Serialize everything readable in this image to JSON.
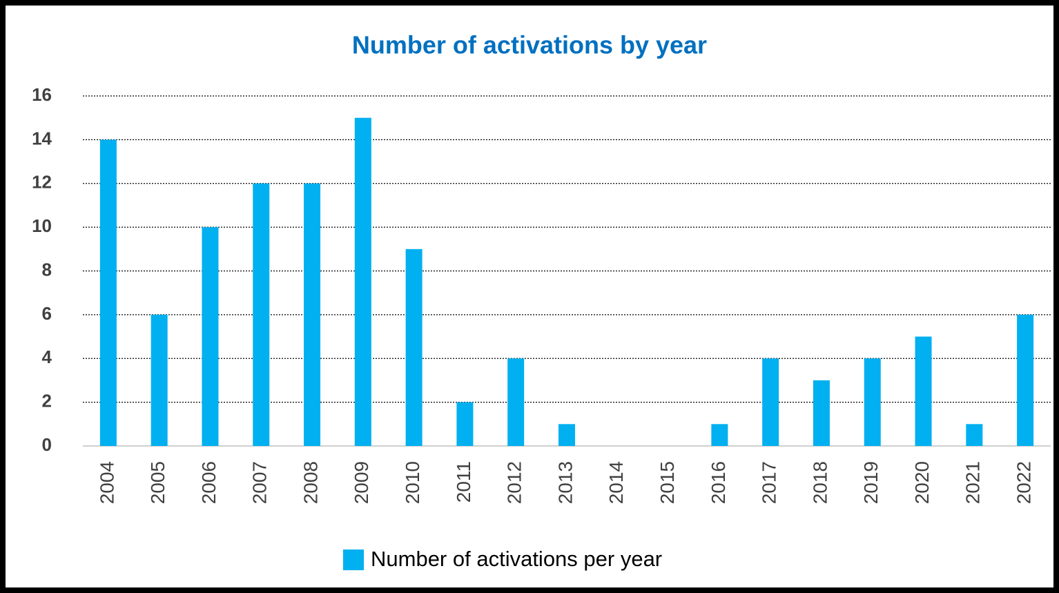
{
  "chart_data": {
    "type": "bar",
    "title": "Number of activations by year",
    "categories": [
      "2004",
      "2005",
      "2006",
      "2007",
      "2008",
      "2009",
      "2010",
      "2011",
      "2012",
      "2013",
      "2014",
      "2015",
      "2016",
      "2017",
      "2018",
      "2019",
      "2020",
      "2021",
      "2022"
    ],
    "series": [
      {
        "name": "Number of activations per year",
        "color": "#00b0f0",
        "values": [
          14,
          6,
          10,
          12,
          12,
          15,
          9,
          2,
          4,
          1,
          0,
          0,
          1,
          4,
          3,
          4,
          5,
          1,
          6
        ]
      }
    ],
    "ylim": [
      0,
      16
    ],
    "yticks": [
      0,
      2,
      4,
      6,
      8,
      10,
      12,
      14,
      16
    ],
    "grid": true,
    "legend": "bottom"
  }
}
